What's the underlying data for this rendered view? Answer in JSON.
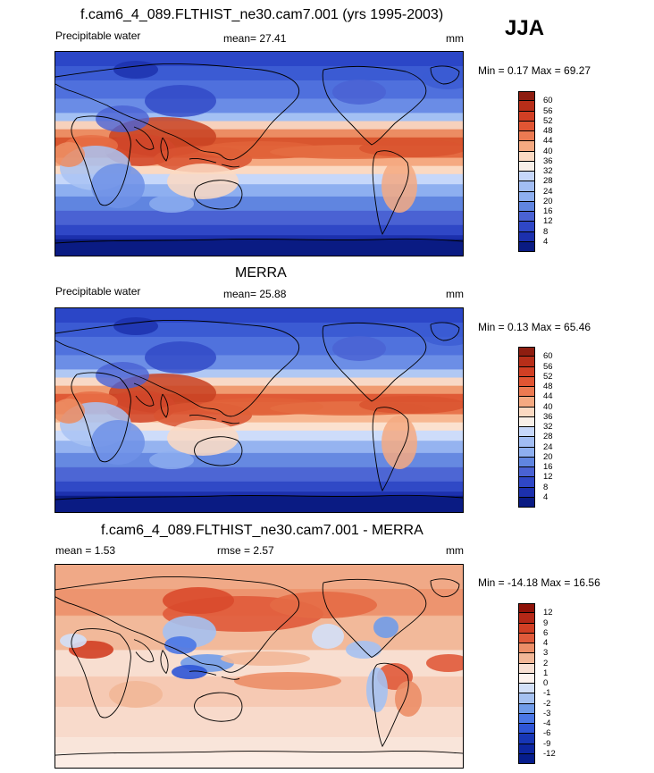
{
  "season": "JJA",
  "colors": {
    "fieldScale": [
      "#4a62d3",
      "#6085e0",
      "#8eaff0",
      "#c6d7fa",
      "#f3f5fb",
      "#fbd9c2",
      "#f5a981",
      "#ec7a52",
      "#e15533",
      "#d13f24",
      "#b72e19",
      "#8e1d10"
    ],
    "diffScale": [
      "#061d8c",
      "#1736b5",
      "#2e55d6",
      "#4a77e6",
      "#709ce9",
      "#a5c1f1",
      "#d3e0f8",
      "#f8e0d3",
      "#f2b797",
      "#ec8e67",
      "#e05a3a",
      "#b52817"
    ],
    "coastline": "#000000"
  },
  "panels": [
    {
      "title": "f.cam6_4_089.FLTHIST_ne30.cam7.001 (yrs 1995-2003)",
      "left_label": "Precipitable water",
      "mid_label": "mean=  27.41",
      "unit": "mm",
      "minmax": "Min =   0.17 Max =  69.27",
      "colorbar_labels": [
        "60",
        "56",
        "52",
        "48",
        "44",
        "40",
        "36",
        "32",
        "28",
        "24",
        "20",
        "16",
        "12",
        "8",
        "4"
      ]
    },
    {
      "title": "MERRA",
      "left_label": "Precipitable water",
      "mid_label": "mean=  25.88",
      "unit": "mm",
      "minmax": "Min =   0.13 Max =  65.46",
      "colorbar_labels": [
        "60",
        "56",
        "52",
        "48",
        "44",
        "40",
        "36",
        "32",
        "28",
        "24",
        "20",
        "16",
        "12",
        "8",
        "4"
      ]
    },
    {
      "title": "f.cam6_4_089.FLTHIST_ne30.cam7.001 - MERRA",
      "left_label": "mean =   1.53",
      "mid_label": "rmse =   2.57",
      "unit": "mm",
      "minmax": "Min = -14.18 Max =  16.56",
      "colorbar_labels": [
        "12",
        "9",
        "6",
        "4",
        "3",
        "2",
        "1",
        "0",
        "-1",
        "-2",
        "-3",
        "-4",
        "-6",
        "-9",
        "-12"
      ]
    }
  ]
}
